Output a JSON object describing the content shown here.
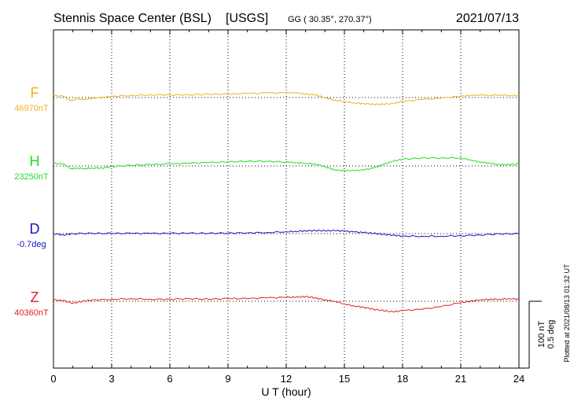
{
  "header": {
    "station": "Stennis Space Center (BSL)",
    "agency": "[USGS]",
    "coords": "GG ( 30.35°, 270.37°)",
    "date": "2021/07/13"
  },
  "x_axis": {
    "label": "U T (hour)",
    "ticks": [
      "0",
      "3",
      "6",
      "9",
      "12",
      "15",
      "18",
      "21",
      "24"
    ]
  },
  "scale_note": {
    "line1": "100 nT",
    "line2": "0.5 deg"
  },
  "plotted_note": "Plotted at 2021/08/13 01:32 UT",
  "colors": {
    "F": "#f2b01e",
    "H": "#22dd22",
    "D": "#1414c8",
    "Z": "#e02020"
  },
  "chart_data": {
    "type": "line",
    "title": "Stennis Space Center (BSL) [USGS]",
    "xlabel": "U T (hour)",
    "ylabel": "",
    "xlim": [
      0,
      24
    ],
    "grid": true,
    "series": [
      {
        "name": "F",
        "baseline_label": "46970nT",
        "baseline": 46970,
        "unit": "nT",
        "x": [
          0,
          0.5,
          0.9,
          1.2,
          1.6,
          2.0,
          2.5,
          3,
          4,
          5,
          6,
          7,
          8,
          9,
          10,
          11,
          12,
          12.5,
          13,
          13.5,
          14,
          14.5,
          15,
          15.5,
          16,
          16.5,
          17,
          17.5,
          18,
          19,
          20,
          21,
          21.5,
          22,
          22.5,
          23,
          23.5,
          24
        ],
        "values": [
          46973,
          46972,
          46965,
          46968,
          46967,
          46969,
          46970,
          46972,
          46973,
          46974,
          46974,
          46974,
          46975,
          46975,
          46976,
          46977,
          46977,
          46977,
          46975,
          46974,
          46970,
          46966,
          46964,
          46962,
          46961,
          46960,
          46960,
          46961,
          46964,
          46967,
          46969,
          46972,
          46973,
          46974,
          46973,
          46974,
          46973,
          46973
        ]
      },
      {
        "name": "H",
        "baseline_label": "23250nT",
        "baseline": 23250,
        "unit": "nT",
        "x": [
          0,
          0.5,
          0.9,
          1.2,
          1.6,
          2.0,
          2.5,
          3,
          4,
          5,
          6,
          7,
          8,
          9,
          10,
          11,
          12,
          12.5,
          13,
          13.5,
          14,
          14.5,
          15,
          15.5,
          16,
          16.5,
          17,
          17.5,
          18,
          19,
          20,
          21,
          21.5,
          22,
          22.5,
          23,
          23.5,
          24
        ],
        "values": [
          23254,
          23253,
          23246,
          23247,
          23246,
          23247,
          23247,
          23249,
          23251,
          23252,
          23253,
          23254,
          23255,
          23256,
          23257,
          23257,
          23256,
          23255,
          23254,
          23253,
          23249,
          23244,
          23243,
          23243,
          23244,
          23247,
          23252,
          23257,
          23260,
          23262,
          23262,
          23262,
          23259,
          23256,
          23254,
          23252,
          23252,
          23253
        ]
      },
      {
        "name": "D",
        "baseline_label": "-0.7deg",
        "baseline": -0.7,
        "unit": "deg",
        "x": [
          0,
          0.5,
          1,
          2,
          3,
          4,
          5,
          6,
          7,
          8,
          9,
          10,
          11,
          12,
          12.5,
          13,
          13.5,
          14,
          14.5,
          15,
          15.5,
          16,
          16.5,
          17,
          17.5,
          18,
          19,
          20,
          21,
          22,
          23,
          24
        ],
        "values": [
          -0.7,
          -0.71,
          -0.7,
          -0.698,
          -0.699,
          -0.698,
          -0.699,
          -0.698,
          -0.697,
          -0.698,
          -0.696,
          -0.694,
          -0.692,
          -0.686,
          -0.683,
          -0.679,
          -0.677,
          -0.679,
          -0.678,
          -0.681,
          -0.688,
          -0.692,
          -0.698,
          -0.706,
          -0.712,
          -0.718,
          -0.72,
          -0.719,
          -0.716,
          -0.71,
          -0.702,
          -0.701
        ]
      },
      {
        "name": "Z",
        "baseline_label": "40360nT",
        "baseline": 40360,
        "unit": "nT",
        "x": [
          0,
          0.5,
          1,
          1.5,
          2,
          3,
          4,
          5,
          6,
          7,
          8,
          9,
          10,
          11,
          12,
          12.5,
          13,
          13.5,
          14,
          14.5,
          15,
          15.5,
          16,
          16.5,
          17,
          17.5,
          18,
          19,
          20,
          21,
          21.5,
          22,
          22.5,
          23,
          23.5,
          24
        ],
        "values": [
          40362,
          40361,
          40357,
          40360,
          40362,
          40363,
          40364,
          40363,
          40363,
          40364,
          40363,
          40364,
          40364,
          40365,
          40366,
          40366,
          40367,
          40365,
          40362,
          40360,
          40356,
          40353,
          40351,
          40348,
          40346,
          40344,
          40346,
          40348,
          40352,
          40358,
          40360,
          40362,
          40363,
          40363,
          40364,
          40363
        ]
      }
    ]
  }
}
